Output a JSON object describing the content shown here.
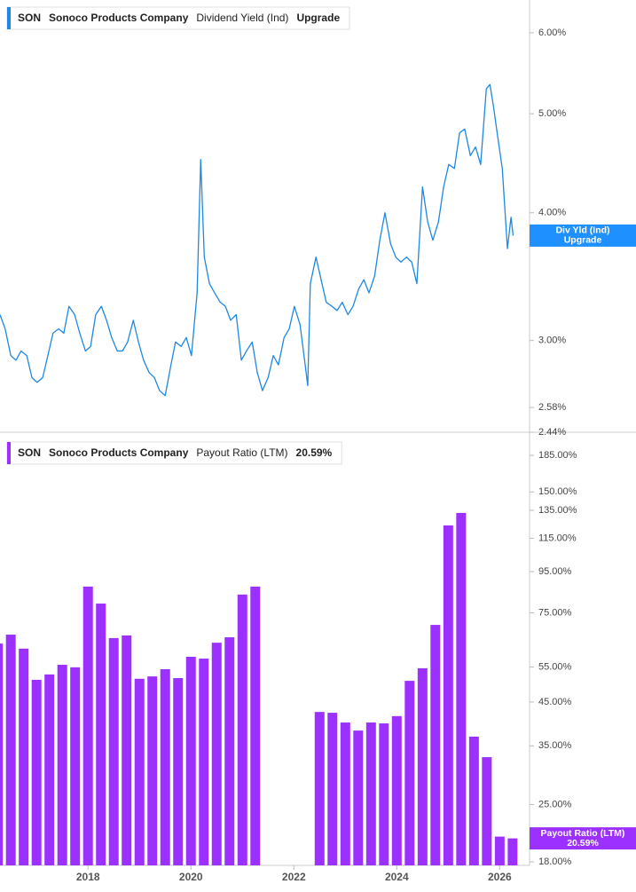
{
  "chart_data": [
    {
      "type": "line",
      "ticker": "SON",
      "company": "Sonoco Products Company",
      "status": "Upgrade",
      "badge": [
        "Div Yld (Ind)",
        "Upgrade"
      ],
      "log": true,
      "xlim": [
        2016.29,
        2026.58
      ],
      "ylim": [
        2.44,
        6.46
      ],
      "yticks": [
        {
          "value": 6,
          "label": "6.00%"
        },
        {
          "value": 5,
          "label": "5.00%"
        },
        {
          "value": 4,
          "label": "4.00%"
        },
        {
          "value": 3,
          "label": "3.00%"
        },
        {
          "value": 2.58,
          "label": "2.58%"
        },
        {
          "value": 2.44,
          "label": "2.44%"
        }
      ],
      "x": [
        2016.29,
        2016.39,
        2016.5,
        2016.6,
        2016.7,
        2016.81,
        2016.91,
        2017.01,
        2017.12,
        2017.22,
        2017.32,
        2017.43,
        2017.53,
        2017.63,
        2017.74,
        2017.84,
        2017.95,
        2018.05,
        2018.15,
        2018.26,
        2018.36,
        2018.46,
        2018.57,
        2018.67,
        2018.77,
        2018.88,
        2018.98,
        2019.08,
        2019.19,
        2019.29,
        2019.39,
        2019.5,
        2019.6,
        2019.7,
        2019.81,
        2019.91,
        2020.01,
        2020.12,
        2020.19,
        2020.26,
        2020.36,
        2020.46,
        2020.57,
        2020.67,
        2020.77,
        2020.88,
        2020.98,
        2021.08,
        2021.19,
        2021.29,
        2021.39,
        2021.5,
        2021.6,
        2021.7,
        2021.81,
        2021.91,
        2022.01,
        2022.12,
        2022.22,
        2022.27,
        2022.32,
        2022.43,
        2022.53,
        2022.63,
        2022.74,
        2022.84,
        2022.94,
        2023.05,
        2023.15,
        2023.26,
        2023.36,
        2023.46,
        2023.57,
        2023.67,
        2023.77,
        2023.88,
        2023.98,
        2024.08,
        2024.19,
        2024.29,
        2024.39,
        2024.5,
        2024.6,
        2024.7,
        2024.81,
        2024.91,
        2025.01,
        2025.12,
        2025.22,
        2025.32,
        2025.43,
        2025.53,
        2025.63,
        2025.74,
        2025.81,
        2025.88,
        2025.94,
        2026.05,
        2026.15,
        2026.22,
        2026.26
      ],
      "series": [
        {
          "name": "Dividend Yield (Ind)",
          "color": "#1e88e5",
          "values": [
            3.18,
            3.08,
            2.9,
            2.87,
            2.93,
            2.9,
            2.76,
            2.73,
            2.76,
            2.9,
            3.05,
            3.08,
            3.05,
            3.24,
            3.18,
            3.05,
            2.93,
            2.96,
            3.18,
            3.24,
            3.14,
            3.02,
            2.93,
            2.93,
            2.99,
            3.14,
            2.99,
            2.87,
            2.79,
            2.76,
            2.68,
            2.65,
            2.82,
            2.99,
            2.96,
            3.02,
            2.9,
            3.34,
            4.51,
            3.62,
            3.41,
            3.34,
            3.27,
            3.24,
            3.14,
            3.18,
            2.87,
            2.93,
            2.99,
            2.79,
            2.68,
            2.76,
            2.9,
            2.84,
            3.02,
            3.08,
            3.24,
            3.11,
            2.84,
            2.71,
            3.41,
            3.62,
            3.44,
            3.27,
            3.24,
            3.21,
            3.27,
            3.18,
            3.24,
            3.37,
            3.44,
            3.34,
            3.47,
            3.76,
            4.0,
            3.73,
            3.62,
            3.58,
            3.62,
            3.58,
            3.41,
            4.24,
            3.92,
            3.76,
            3.92,
            4.24,
            4.46,
            4.42,
            4.79,
            4.83,
            4.55,
            4.64,
            4.46,
            5.29,
            5.34,
            5.08,
            4.83,
            4.42,
            3.69,
            3.96,
            3.8
          ]
        }
      ]
    },
    {
      "type": "bar",
      "ticker": "SON",
      "company": "Sonoco Products Company",
      "badge": [
        "Payout Ratio (LTM)",
        "20.59%"
      ],
      "log": true,
      "xlim": [
        2016.29,
        2026.58
      ],
      "ylim": [
        17.64,
        208
      ],
      "xticks": [
        2018,
        2020,
        2022,
        2024,
        2026
      ],
      "yticks": [
        {
          "value": 185,
          "label": "185.00%"
        },
        {
          "value": 150,
          "label": "150.00%"
        },
        {
          "value": 135,
          "label": "135.00%"
        },
        {
          "value": 115,
          "label": "115.00%"
        },
        {
          "value": 95,
          "label": "95.00%"
        },
        {
          "value": 75,
          "label": "75.00%"
        },
        {
          "value": 55,
          "label": "55.00%"
        },
        {
          "value": 45,
          "label": "45.00%"
        },
        {
          "value": 35,
          "label": "35.00%"
        },
        {
          "value": 25,
          "label": "25.00%"
        },
        {
          "value": 18,
          "label": "18.00%"
        }
      ],
      "x": [
        2016.25,
        2016.5,
        2016.75,
        2017,
        2017.25,
        2017.5,
        2017.75,
        2018,
        2018.25,
        2018.5,
        2018.75,
        2019,
        2019.25,
        2019.5,
        2019.75,
        2020,
        2020.25,
        2020.5,
        2020.75,
        2021,
        2021.25,
        2021.5,
        2021.75,
        2022,
        2022.25,
        2022.5,
        2022.75,
        2023,
        2023.25,
        2023.5,
        2023.75,
        2024,
        2024.25,
        2024.5,
        2024.75,
        2025,
        2025.25,
        2025.5,
        2025.75,
        2026,
        2026.25
      ],
      "series": [
        {
          "name": "Payout Ratio (LTM)",
          "color": "#9b30ff",
          "last_value_label": "20.59%",
          "values": [
            62.9,
            66.2,
            61.1,
            51.1,
            52.7,
            55.7,
            54.9,
            87.2,
            79.1,
            64.9,
            65.9,
            51.4,
            52.1,
            54.3,
            51.6,
            58.3,
            57.7,
            63.2,
            65.2,
            83.3,
            87.2,
            null,
            null,
            null,
            null,
            42.5,
            42.3,
            40.0,
            38.2,
            40.0,
            39.8,
            41.5,
            50.8,
            54.6,
            70.0,
            123.8,
            133.0,
            36.9,
            32.8,
            20.8,
            20.59
          ]
        }
      ]
    }
  ]
}
